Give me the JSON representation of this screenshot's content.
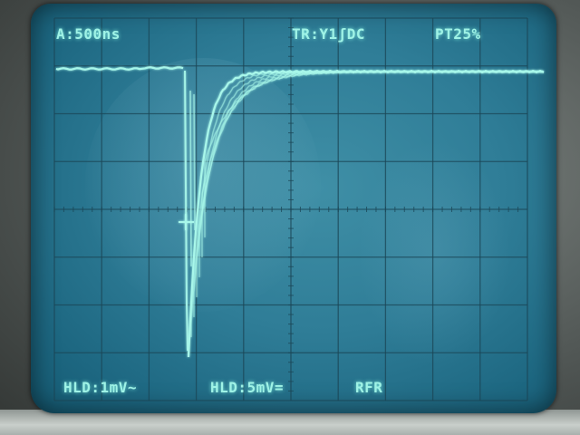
{
  "scope": {
    "header": {
      "timebase": "A:500ns",
      "trigger": "TR:Y1ʃDC",
      "pretrigger": "PT25%"
    },
    "footer": {
      "channel1": "HLD:1mV~",
      "channel2": "HLD:5mV=",
      "mode": "RFR"
    },
    "colors": {
      "trace": "#a8f7ea",
      "screen": "#2f7d97",
      "grid": "#1b4656"
    },
    "grid": {
      "divisions_x": 10,
      "divisions_y": 8
    }
  }
}
